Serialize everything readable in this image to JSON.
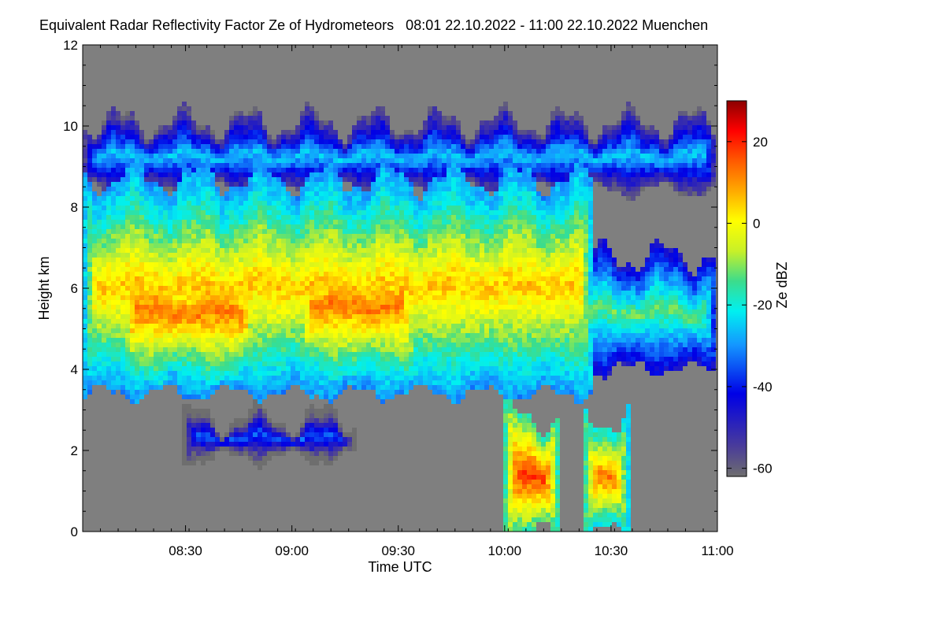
{
  "chart_data": {
    "type": "heatmap",
    "title": "Equivalent Radar Reflectivity Factor Ze of Hydrometeors   08:01 22.10.2022 - 11:00 22.10.2022 Muenchen",
    "xlabel": "Time UTC",
    "ylabel": "Height km",
    "x_tick_labels": [
      "08:30",
      "09:00",
      "09:30",
      "10:00",
      "10:30",
      "11:00"
    ],
    "x_tick_values_min": [
      30,
      60,
      90,
      120,
      150,
      180
    ],
    "xlim_min": [
      1,
      180
    ],
    "y_tick_labels": [
      "0",
      "2",
      "4",
      "6",
      "8",
      "10",
      "12"
    ],
    "y_tick_values": [
      0,
      2,
      4,
      6,
      8,
      10,
      12
    ],
    "ylim": [
      0,
      12
    ],
    "colorbar": {
      "label": "Ze dBZ",
      "range": [
        -62,
        30
      ],
      "tick_labels": [
        "20",
        "0",
        "-20",
        "-40",
        "-60"
      ],
      "tick_values": [
        20,
        0,
        -20,
        -40,
        -60
      ]
    },
    "background_color": "#7f7f7f",
    "features": [
      {
        "name": "cirrus layer",
        "t_start": 1,
        "t_end": 180,
        "z_bottom": 8.4,
        "z_top": 10.1,
        "ze": -25
      },
      {
        "name": "main precipitating cloud",
        "t_start": 1,
        "t_end": 145,
        "z_bottom": 3.4,
        "z_top": 8.7,
        "ze": 5
      },
      {
        "name": "core 1",
        "t_start": 12,
        "t_end": 50,
        "z_bottom": 3.8,
        "z_top": 7.0,
        "ze": 12
      },
      {
        "name": "core 2",
        "t_start": 62,
        "t_end": 95,
        "z_bottom": 3.9,
        "z_top": 7.2,
        "ze": 12
      },
      {
        "name": "broken cells",
        "t_start": 113,
        "t_end": 180,
        "z_bottom": 4.0,
        "z_top": 6.8,
        "ze": -12
      },
      {
        "name": "low virga band",
        "t_start": 29,
        "t_end": 78,
        "z_bottom": 1.8,
        "z_top": 2.8,
        "ze": -35
      },
      {
        "name": "rain shaft 1",
        "t_start": 120,
        "t_end": 135,
        "z_bottom": 0.0,
        "z_top": 2.8,
        "ze": 18
      },
      {
        "name": "rain shaft 2",
        "t_start": 142,
        "t_end": 155,
        "z_bottom": 0.0,
        "z_top": 2.8,
        "ze": 12
      }
    ]
  }
}
